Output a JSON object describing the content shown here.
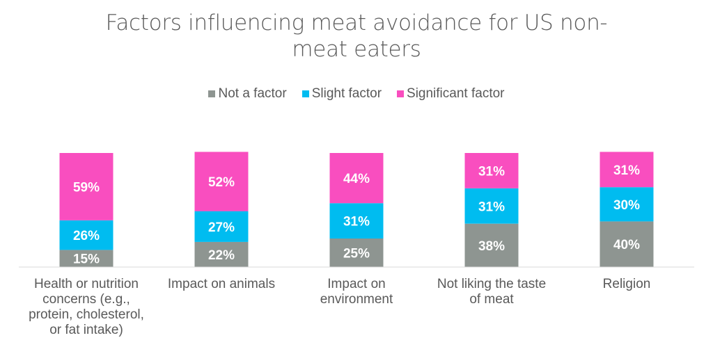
{
  "chart_data": {
    "type": "bar",
    "stacked": "100%",
    "title": "Factors influencing meat avoidance for US non-meat eaters",
    "title_lines": [
      "Factors influencing meat avoidance for US non-",
      "meat eaters"
    ],
    "xlabel": "",
    "ylabel": "",
    "ylim": [
      0,
      100
    ],
    "grid": false,
    "legend_position": "top",
    "categories": [
      "Health or nutrition concerns (e.g., protein, cholesterol, or fat intake)",
      "Impact on animals",
      "Impact on environment",
      "Not liking the taste of meat",
      "Religion"
    ],
    "category_lines": [
      [
        "Health or nutrition",
        "concerns (e.g.,",
        "protein, cholesterol,",
        "or fat intake)"
      ],
      [
        "Impact on animals"
      ],
      [
        "Impact on",
        "environment"
      ],
      [
        "Not liking the taste",
        "of meat"
      ],
      [
        "Religion"
      ]
    ],
    "series": [
      {
        "name": "Not a factor",
        "color": "#8E9591",
        "values": [
          15,
          22,
          25,
          38,
          40
        ],
        "labels": [
          "15%",
          "22%",
          "25%",
          "38%",
          "40%"
        ]
      },
      {
        "name": "Slight factor",
        "color": "#00BCF0",
        "values": [
          26,
          27,
          31,
          31,
          30
        ],
        "labels": [
          "26%",
          "27%",
          "31%",
          "31%",
          "30%"
        ]
      },
      {
        "name": "Significant factor",
        "color": "#F94EBF",
        "values": [
          59,
          52,
          44,
          31,
          31
        ],
        "labels": [
          "59%",
          "52%",
          "44%",
          "31%",
          "31%"
        ]
      }
    ]
  }
}
